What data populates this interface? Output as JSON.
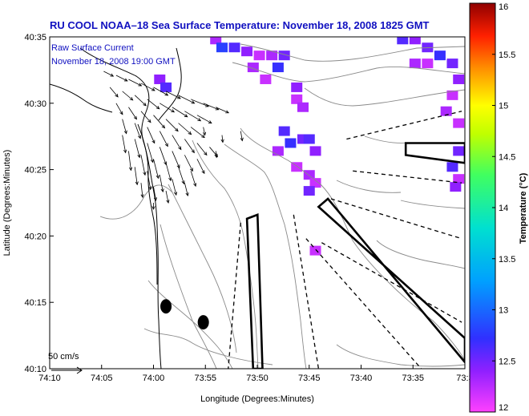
{
  "colors": {
    "title": "#1010c0",
    "legend": "#1010c0",
    "coast": "#000000",
    "bathy": "#8a8a8a",
    "arrow": "#000000",
    "zone": "#000000",
    "sst_low": "#ff40ff",
    "sst_mid": "#3030ff"
  },
  "chart_data": {
    "type": "map",
    "title": "RU COOL  NOAA–18  Sea Surface Temperature:  November 18, 2008 1825 GMT",
    "legend_line1": "Raw Surface Current",
    "legend_line2": "November 18, 2008 19:00 GMT",
    "xlabel": "Longitude (Degrees:Minutes)",
    "ylabel": "Latitude (Degrees:Minutes)",
    "x_ticks": [
      "74:10",
      "74:05",
      "74:00",
      "73:55",
      "73:50",
      "73:45",
      "73:40",
      "73:35",
      "73:3"
    ],
    "y_ticks": [
      "40:10",
      "40:15",
      "40:20",
      "40:25",
      "40:30",
      "40:35"
    ],
    "xlim_deg": [
      -74.1667,
      -73.5
    ],
    "ylim_deg": [
      40.1667,
      40.5833
    ],
    "scale_label": "50 cm/s",
    "colorbar": {
      "label": "Temperature (°C)",
      "min": 12,
      "max": 16,
      "ticks": [
        "16",
        "15.5",
        "15",
        "14.5",
        "14",
        "13.5",
        "13",
        "12.5",
        "12"
      ]
    },
    "sst_pixels": [
      {
        "lon": -73.9,
        "lat": 40.58,
        "t": 12.3
      },
      {
        "lon": -73.89,
        "lat": 40.57,
        "t": 12.8
      },
      {
        "lon": -73.87,
        "lat": 40.57,
        "t": 12.6
      },
      {
        "lon": -73.85,
        "lat": 40.565,
        "t": 12.4
      },
      {
        "lon": -73.83,
        "lat": 40.56,
        "t": 12.2
      },
      {
        "lon": -73.81,
        "lat": 40.56,
        "t": 12.3
      },
      {
        "lon": -73.79,
        "lat": 40.56,
        "t": 12.5
      },
      {
        "lon": -73.8,
        "lat": 40.545,
        "t": 12.7
      },
      {
        "lon": -73.82,
        "lat": 40.53,
        "t": 12.2
      },
      {
        "lon": -73.84,
        "lat": 40.545,
        "t": 12.3
      },
      {
        "lon": -73.77,
        "lat": 40.52,
        "t": 12.4
      },
      {
        "lon": -73.77,
        "lat": 40.505,
        "t": 12.2
      },
      {
        "lon": -73.76,
        "lat": 40.495,
        "t": 12.3
      },
      {
        "lon": -73.79,
        "lat": 40.465,
        "t": 12.6
      },
      {
        "lon": -73.78,
        "lat": 40.45,
        "t": 12.7
      },
      {
        "lon": -73.76,
        "lat": 40.455,
        "t": 12.5
      },
      {
        "lon": -73.75,
        "lat": 40.455,
        "t": 12.6
      },
      {
        "lon": -73.74,
        "lat": 40.44,
        "t": 12.4
      },
      {
        "lon": -73.8,
        "lat": 40.44,
        "t": 12.3
      },
      {
        "lon": -73.77,
        "lat": 40.42,
        "t": 12.2
      },
      {
        "lon": -73.75,
        "lat": 40.41,
        "t": 12.3
      },
      {
        "lon": -73.74,
        "lat": 40.4,
        "t": 12.2
      },
      {
        "lon": -73.75,
        "lat": 40.39,
        "t": 12.5
      },
      {
        "lon": -73.99,
        "lat": 40.53,
        "t": 12.4
      },
      {
        "lon": -73.98,
        "lat": 40.52,
        "t": 12.6
      },
      {
        "lon": -73.6,
        "lat": 40.58,
        "t": 12.6
      },
      {
        "lon": -73.58,
        "lat": 40.58,
        "t": 12.4
      },
      {
        "lon": -73.56,
        "lat": 40.57,
        "t": 12.5
      },
      {
        "lon": -73.54,
        "lat": 40.56,
        "t": 12.7
      },
      {
        "lon": -73.56,
        "lat": 40.55,
        "t": 12.2
      },
      {
        "lon": -73.58,
        "lat": 40.55,
        "t": 12.3
      },
      {
        "lon": -73.52,
        "lat": 40.55,
        "t": 12.5
      },
      {
        "lon": -73.51,
        "lat": 40.53,
        "t": 12.4
      },
      {
        "lon": -73.52,
        "lat": 40.51,
        "t": 12.2
      },
      {
        "lon": -73.53,
        "lat": 40.49,
        "t": 12.3
      },
      {
        "lon": -73.51,
        "lat": 40.475,
        "t": 12.2
      },
      {
        "lon": -73.51,
        "lat": 40.44,
        "t": 12.5
      },
      {
        "lon": -73.52,
        "lat": 40.42,
        "t": 12.6
      },
      {
        "lon": -73.51,
        "lat": 40.405,
        "t": 12.2
      },
      {
        "lon": -73.515,
        "lat": 40.395,
        "t": 12.4
      },
      {
        "lon": -73.74,
        "lat": 40.315,
        "t": 12.2
      }
    ],
    "current_vectors": [
      {
        "lon": -74.08,
        "lat": 40.54,
        "u": 12,
        "v": -6
      },
      {
        "lon": -74.06,
        "lat": 40.535,
        "u": 14,
        "v": -7
      },
      {
        "lon": -74.04,
        "lat": 40.53,
        "u": 16,
        "v": -8
      },
      {
        "lon": -74.02,
        "lat": 40.525,
        "u": 17,
        "v": -9
      },
      {
        "lon": -74.0,
        "lat": 40.52,
        "u": 18,
        "v": -10
      },
      {
        "lon": -73.98,
        "lat": 40.515,
        "u": 18,
        "v": -9
      },
      {
        "lon": -73.96,
        "lat": 40.51,
        "u": 20,
        "v": -10
      },
      {
        "lon": -73.94,
        "lat": 40.505,
        "u": 22,
        "v": -9
      },
      {
        "lon": -73.92,
        "lat": 40.5,
        "u": 19,
        "v": -8
      },
      {
        "lon": -73.9,
        "lat": 40.495,
        "u": 16,
        "v": -7
      },
      {
        "lon": -74.07,
        "lat": 40.52,
        "u": 10,
        "v": -12
      },
      {
        "lon": -74.05,
        "lat": 40.515,
        "u": 13,
        "v": -11
      },
      {
        "lon": -74.03,
        "lat": 40.51,
        "u": 14,
        "v": -13
      },
      {
        "lon": -74.01,
        "lat": 40.505,
        "u": 15,
        "v": -12
      },
      {
        "lon": -73.99,
        "lat": 40.5,
        "u": 18,
        "v": -11
      },
      {
        "lon": -73.97,
        "lat": 40.495,
        "u": 19,
        "v": -12
      },
      {
        "lon": -73.95,
        "lat": 40.49,
        "u": 20,
        "v": -12
      },
      {
        "lon": -73.93,
        "lat": 40.485,
        "u": 18,
        "v": -10
      },
      {
        "lon": -74.06,
        "lat": 40.5,
        "u": 8,
        "v": -14
      },
      {
        "lon": -74.04,
        "lat": 40.495,
        "u": 10,
        "v": -15
      },
      {
        "lon": -74.02,
        "lat": 40.49,
        "u": 12,
        "v": -14
      },
      {
        "lon": -74.0,
        "lat": 40.485,
        "u": 14,
        "v": -16
      },
      {
        "lon": -73.98,
        "lat": 40.48,
        "u": 15,
        "v": -15
      },
      {
        "lon": -73.96,
        "lat": 40.475,
        "u": 16,
        "v": -14
      },
      {
        "lon": -73.94,
        "lat": 40.47,
        "u": 17,
        "v": -13
      },
      {
        "lon": -74.05,
        "lat": 40.48,
        "u": 5,
        "v": -18
      },
      {
        "lon": -74.03,
        "lat": 40.475,
        "u": 7,
        "v": -19
      },
      {
        "lon": -74.01,
        "lat": 40.47,
        "u": 9,
        "v": -20
      },
      {
        "lon": -73.99,
        "lat": 40.465,
        "u": 10,
        "v": -19
      },
      {
        "lon": -73.97,
        "lat": 40.46,
        "u": 11,
        "v": -18
      },
      {
        "lon": -73.95,
        "lat": 40.455,
        "u": 12,
        "v": -17
      },
      {
        "lon": -73.93,
        "lat": 40.45,
        "u": 12,
        "v": -15
      },
      {
        "lon": -73.91,
        "lat": 40.445,
        "u": 10,
        "v": -12
      },
      {
        "lon": -74.05,
        "lat": 40.46,
        "u": 4,
        "v": -22
      },
      {
        "lon": -74.03,
        "lat": 40.455,
        "u": 6,
        "v": -23
      },
      {
        "lon": -74.01,
        "lat": 40.45,
        "u": 7,
        "v": -24
      },
      {
        "lon": -73.99,
        "lat": 40.445,
        "u": 8,
        "v": -22
      },
      {
        "lon": -73.97,
        "lat": 40.44,
        "u": 9,
        "v": -21
      },
      {
        "lon": -73.95,
        "lat": 40.435,
        "u": 10,
        "v": -20
      },
      {
        "lon": -73.93,
        "lat": 40.43,
        "u": 9,
        "v": -18
      },
      {
        "lon": -74.04,
        "lat": 40.44,
        "u": 3,
        "v": -24
      },
      {
        "lon": -74.02,
        "lat": 40.435,
        "u": 5,
        "v": -25
      },
      {
        "lon": -74.0,
        "lat": 40.43,
        "u": 6,
        "v": -24
      },
      {
        "lon": -73.98,
        "lat": 40.425,
        "u": 6,
        "v": -22
      },
      {
        "lon": -73.96,
        "lat": 40.42,
        "u": 7,
        "v": -21
      },
      {
        "lon": -73.94,
        "lat": 40.415,
        "u": 6,
        "v": -19
      },
      {
        "lon": -74.03,
        "lat": 40.42,
        "u": 3,
        "v": -22
      },
      {
        "lon": -74.01,
        "lat": 40.415,
        "u": 4,
        "v": -23
      },
      {
        "lon": -73.99,
        "lat": 40.41,
        "u": 4,
        "v": -21
      },
      {
        "lon": -73.97,
        "lat": 40.405,
        "u": 5,
        "v": -20
      },
      {
        "lon": -73.95,
        "lat": 40.4,
        "u": 4,
        "v": -16
      },
      {
        "lon": -74.02,
        "lat": 40.4,
        "u": 2,
        "v": -18
      },
      {
        "lon": -74.0,
        "lat": 40.395,
        "u": 3,
        "v": -17
      },
      {
        "lon": -73.98,
        "lat": 40.39,
        "u": 3,
        "v": -15
      },
      {
        "lon": -73.92,
        "lat": 40.47,
        "u": 2,
        "v": -10
      },
      {
        "lon": -73.89,
        "lat": 40.46,
        "u": 1,
        "v": -9
      },
      {
        "lon": -73.86,
        "lat": 40.465,
        "u": 2,
        "v": -12
      },
      {
        "lon": -73.9,
        "lat": 40.44,
        "u": 1,
        "v": -8
      },
      {
        "lon": -74.0,
        "lat": 40.375,
        "u": 0,
        "v": -8
      }
    ],
    "zones": [
      {
        "type": "box",
        "style": "solid",
        "lonlat": [
          [
            -73.595,
            40.45
          ],
          [
            -73.5,
            40.45
          ],
          [
            -73.5,
            40.425
          ],
          [
            -73.595,
            40.435
          ]
        ]
      },
      {
        "type": "wedge",
        "style": "solid",
        "lonlat": [
          [
            -73.735,
            40.37
          ],
          [
            -73.5,
            40.205
          ],
          [
            -73.5,
            40.175
          ],
          [
            -73.72,
            40.38
          ]
        ]
      },
      {
        "type": "box",
        "style": "solid",
        "lonlat": [
          [
            -73.85,
            40.355
          ],
          [
            -73.833,
            40.36
          ],
          [
            -73.825,
            40.1667
          ],
          [
            -73.84,
            40.1667
          ]
        ]
      }
    ],
    "dashed_lines": [
      [
        [
          -73.69,
          40.455
        ],
        [
          -73.505,
          40.49
        ]
      ],
      [
        [
          -73.68,
          40.415
        ],
        [
          -73.505,
          40.4
        ]
      ],
      [
        [
          -73.715,
          40.38
        ],
        [
          -73.505,
          40.33
        ]
      ],
      [
        [
          -73.73,
          40.325
        ],
        [
          -73.505,
          40.225
        ]
      ],
      [
        [
          -73.755,
          40.33
        ],
        [
          -73.57,
          40.1667
        ]
      ],
      [
        [
          -73.775,
          40.36
        ],
        [
          -73.735,
          40.1667
        ]
      ],
      [
        [
          -73.86,
          40.35
        ],
        [
          -73.88,
          40.1667
        ]
      ]
    ],
    "platforms": [
      {
        "lon": -73.98,
        "lat": 40.245
      },
      {
        "lon": -73.92,
        "lat": 40.225
      }
    ]
  }
}
